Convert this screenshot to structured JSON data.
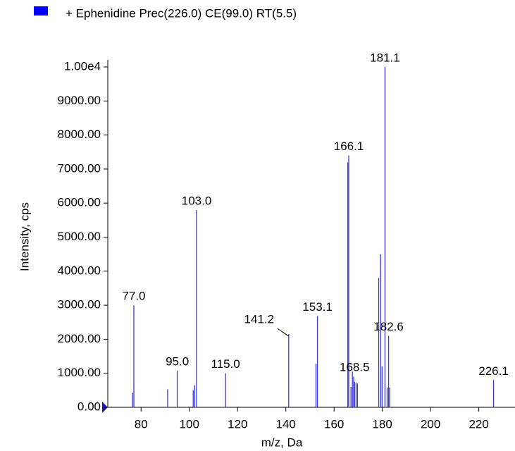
{
  "chart_data": {
    "type": "spectrum",
    "legend": "+ Ephenidine Prec(226.0) CE(99.0) RT(5.5)",
    "x_label": "m/z, Da",
    "y_label": "Intensity, cps",
    "color": "#3a3ad6",
    "legend_color": "#0000ff",
    "x": [
      76.5,
      77.0,
      91.0,
      95.0,
      101.6,
      102.2,
      103.0,
      115.0,
      141.2,
      152.5,
      153.1,
      165.7,
      166.1,
      167.0,
      167.6,
      168.1,
      168.5,
      169.1,
      169.7,
      178.5,
      179.3,
      179.9,
      181.1,
      182.0,
      182.6,
      183.1,
      226.1
    ],
    "values": [
      430,
      3000,
      530,
      1080,
      500,
      650,
      5800,
      1000,
      2150,
      1280,
      2680,
      7200,
      7400,
      600,
      1050,
      900,
      750,
      720,
      700,
      3800,
      4500,
      1200,
      10000,
      580,
      2100,
      580,
      800
    ],
    "x_labels": [
      null,
      "77.0",
      null,
      "95.0",
      null,
      null,
      "103.0",
      "115.0",
      "141.2",
      null,
      "153.1",
      null,
      "166.1",
      null,
      null,
      null,
      "168.5",
      null,
      null,
      null,
      null,
      null,
      "181.1",
      null,
      "182.6",
      null,
      "226.1"
    ],
    "xlim": [
      66.2,
      235
    ],
    "ylim": [
      0,
      10000
    ],
    "xticks": [
      80,
      100,
      120,
      140,
      160,
      180,
      200,
      220
    ],
    "yticks": [
      {
        "value": 0,
        "label": "0.00"
      },
      {
        "value": 1000,
        "label": "1000.00"
      },
      {
        "value": 2000,
        "label": "2000.00"
      },
      {
        "value": 3000,
        "label": "3000.00"
      },
      {
        "value": 4000,
        "label": "4000.00"
      },
      {
        "value": 5000,
        "label": "5000.00"
      },
      {
        "value": 6000,
        "label": "6000.00"
      },
      {
        "value": 7000,
        "label": "7000.00"
      },
      {
        "value": 8000,
        "label": "8000.00"
      },
      {
        "value": 9000,
        "label": "9000.00"
      },
      {
        "value": 10000,
        "label": "1.00e4"
      }
    ]
  }
}
